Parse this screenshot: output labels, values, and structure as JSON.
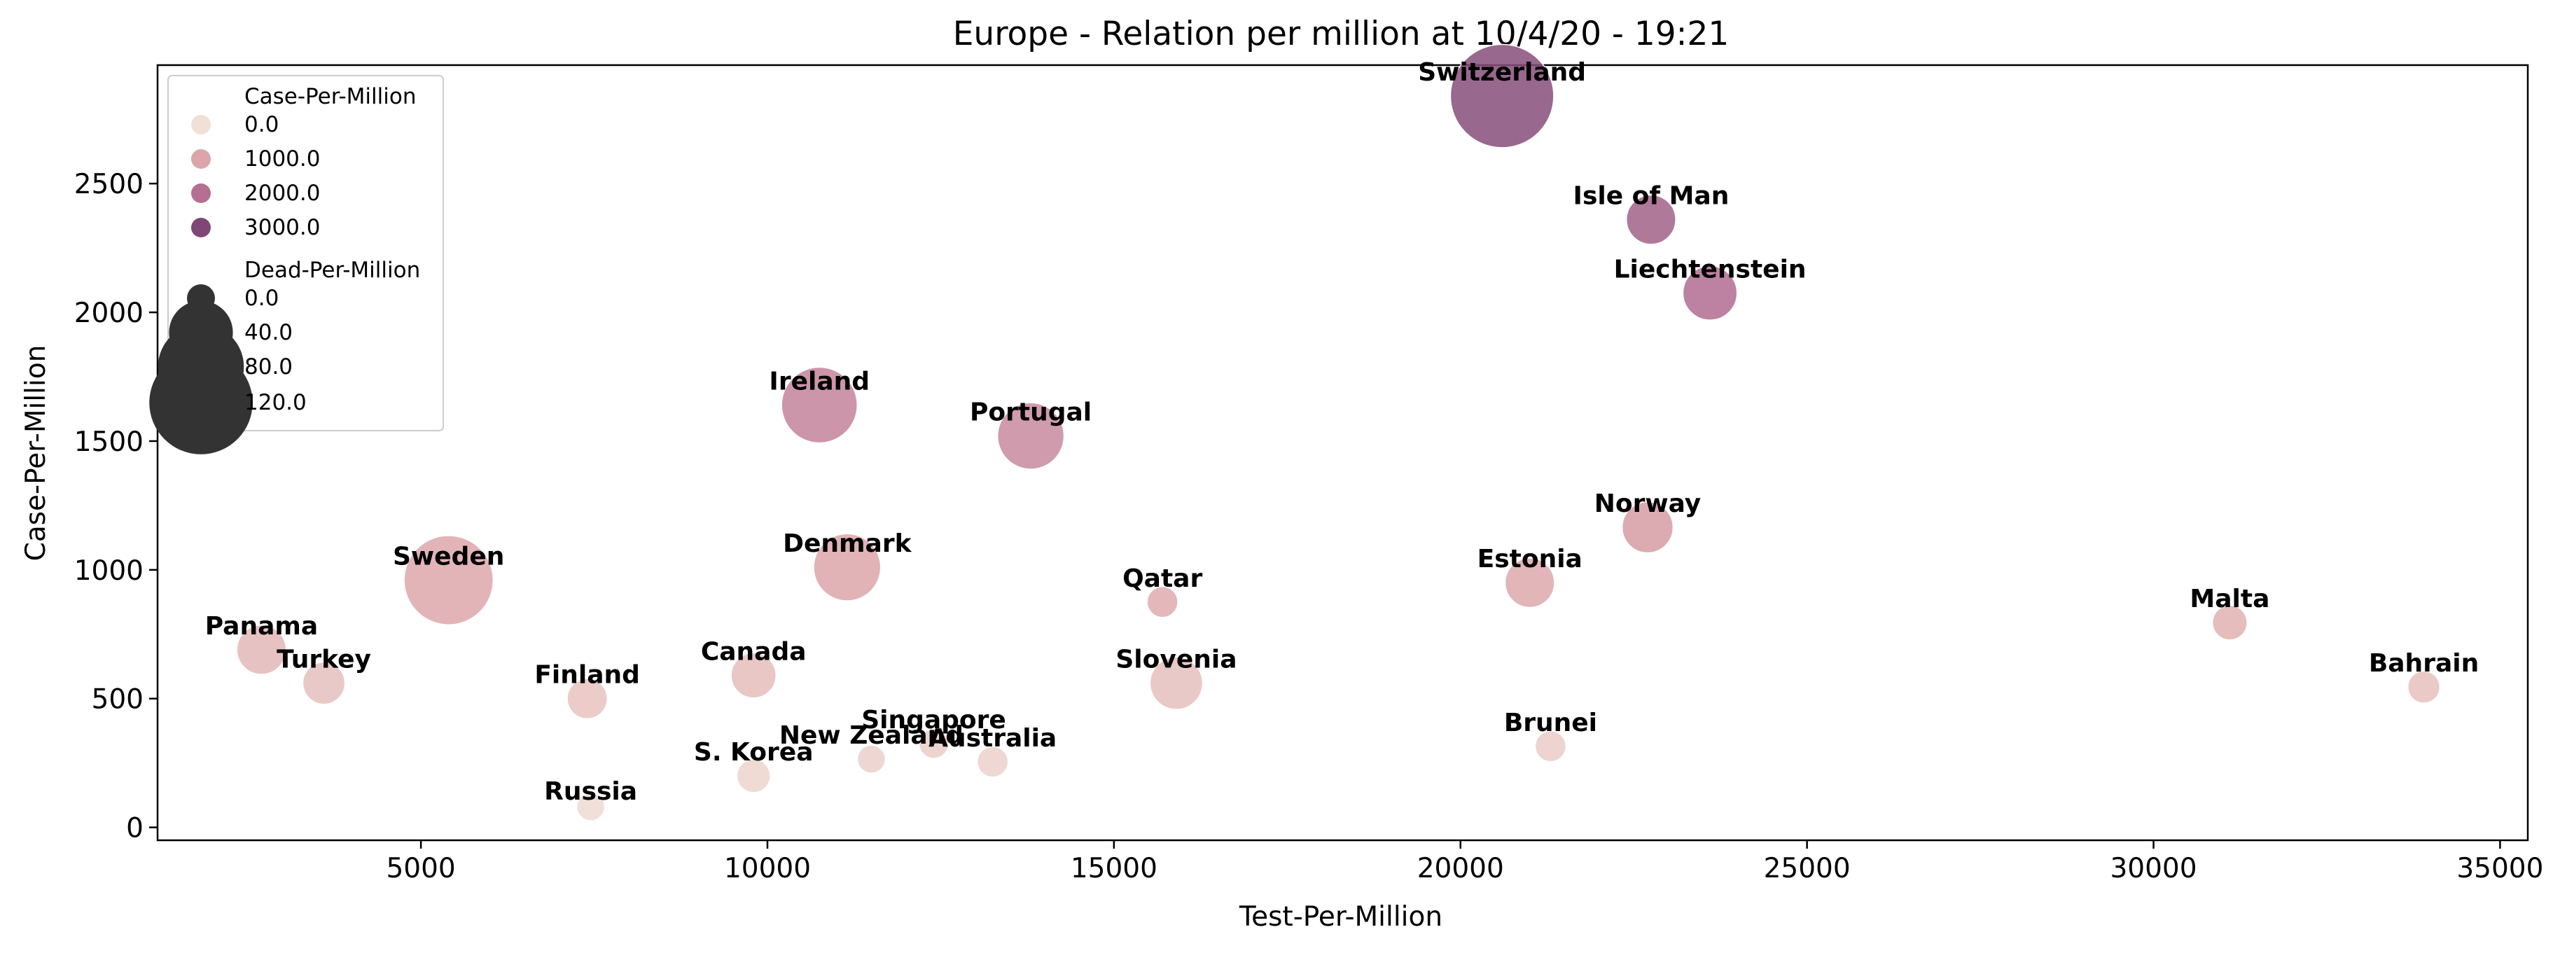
{
  "chart_data": {
    "type": "scatter",
    "title": "Europe - Relation per million at 10/4/20 - 19:21",
    "xlabel": "Test-Per-Million",
    "ylabel": "Case-Per-Million",
    "xlim": [
      1200,
      35400
    ],
    "ylim": [
      -50,
      2960
    ],
    "xticks": [
      "5000",
      "10000",
      "15000",
      "20000",
      "25000",
      "30000",
      "35000"
    ],
    "yticks": [
      "0",
      "500",
      "1000",
      "1500",
      "2000",
      "2500"
    ],
    "grid": false,
    "legend": {
      "placement": "top-left",
      "hue_title": "Case-Per-Million",
      "hue_entries": [
        "0.0",
        "1000.0",
        "2000.0",
        "3000.0"
      ],
      "size_title": "Dead-Per-Million",
      "size_entries": [
        "0.0",
        "40.0",
        "80.0",
        "120.0"
      ]
    },
    "colors": {
      "hue_low": "#f1e0d6",
      "hue_mid1": "#dca5a9",
      "hue_mid2": "#b56f92",
      "hue_high": "#7e4776",
      "legend_marker": "#333333",
      "highlight_label": "#0000ee"
    },
    "points": [
      {
        "label": "Switzerland",
        "x": 20600,
        "y": 2840,
        "dead": 120,
        "cpm": 2840
      },
      {
        "label": "Isle of Man",
        "x": 22750,
        "y": 2360,
        "dead": 20,
        "cpm": 2360
      },
      {
        "label": "Liechtenstein",
        "x": 23600,
        "y": 2075,
        "dead": 26,
        "cpm": 2075
      },
      {
        "label": "Ireland",
        "x": 10750,
        "y": 1640,
        "dead": 60,
        "cpm": 1640
      },
      {
        "label": "Portugal",
        "x": 13800,
        "y": 1520,
        "dead": 44,
        "cpm": 1520
      },
      {
        "label": "Norway",
        "x": 22700,
        "y": 1165,
        "dead": 22,
        "cpm": 1165
      },
      {
        "label": "Denmark",
        "x": 11150,
        "y": 1010,
        "dead": 45,
        "cpm": 1010
      },
      {
        "label": "Sweden",
        "x": 5400,
        "y": 960,
        "dead": 87,
        "cpm": 960
      },
      {
        "label": "Estonia",
        "x": 21000,
        "y": 950,
        "dead": 20,
        "cpm": 950
      },
      {
        "label": "Qatar",
        "x": 15700,
        "y": 875,
        "dead": 2,
        "cpm": 875
      },
      {
        "label": "Malta",
        "x": 31100,
        "y": 795,
        "dead": 5,
        "cpm": 795
      },
      {
        "label": "Panama",
        "x": 2700,
        "y": 690,
        "dead": 20,
        "cpm": 690,
        "highlight": true
      },
      {
        "label": "Turkey",
        "x": 3600,
        "y": 560,
        "dead": 12,
        "cpm": 560
      },
      {
        "label": "Canada",
        "x": 9800,
        "y": 590,
        "dead": 15,
        "cpm": 590
      },
      {
        "label": "Slovenia",
        "x": 15900,
        "y": 560,
        "dead": 24,
        "cpm": 560
      },
      {
        "label": "Bahrain",
        "x": 33900,
        "y": 545,
        "dead": 3,
        "cpm": 545
      },
      {
        "label": "Finland",
        "x": 7400,
        "y": 500,
        "dead": 10,
        "cpm": 500
      },
      {
        "label": "Brunei",
        "x": 21300,
        "y": 315,
        "dead": 2,
        "cpm": 315
      },
      {
        "label": "Singapore",
        "x": 12400,
        "y": 325,
        "dead": 1,
        "cpm": 325
      },
      {
        "label": "New Zealand",
        "x": 11500,
        "y": 265,
        "dead": 0,
        "cpm": 265
      },
      {
        "label": "Australia",
        "x": 13250,
        "y": 255,
        "dead": 2,
        "cpm": 255
      },
      {
        "label": "S. Korea",
        "x": 9800,
        "y": 200,
        "dead": 4,
        "cpm": 200
      },
      {
        "label": "Russia",
        "x": 7450,
        "y": 80,
        "dead": 0,
        "cpm": 80,
        "small": true
      }
    ]
  }
}
